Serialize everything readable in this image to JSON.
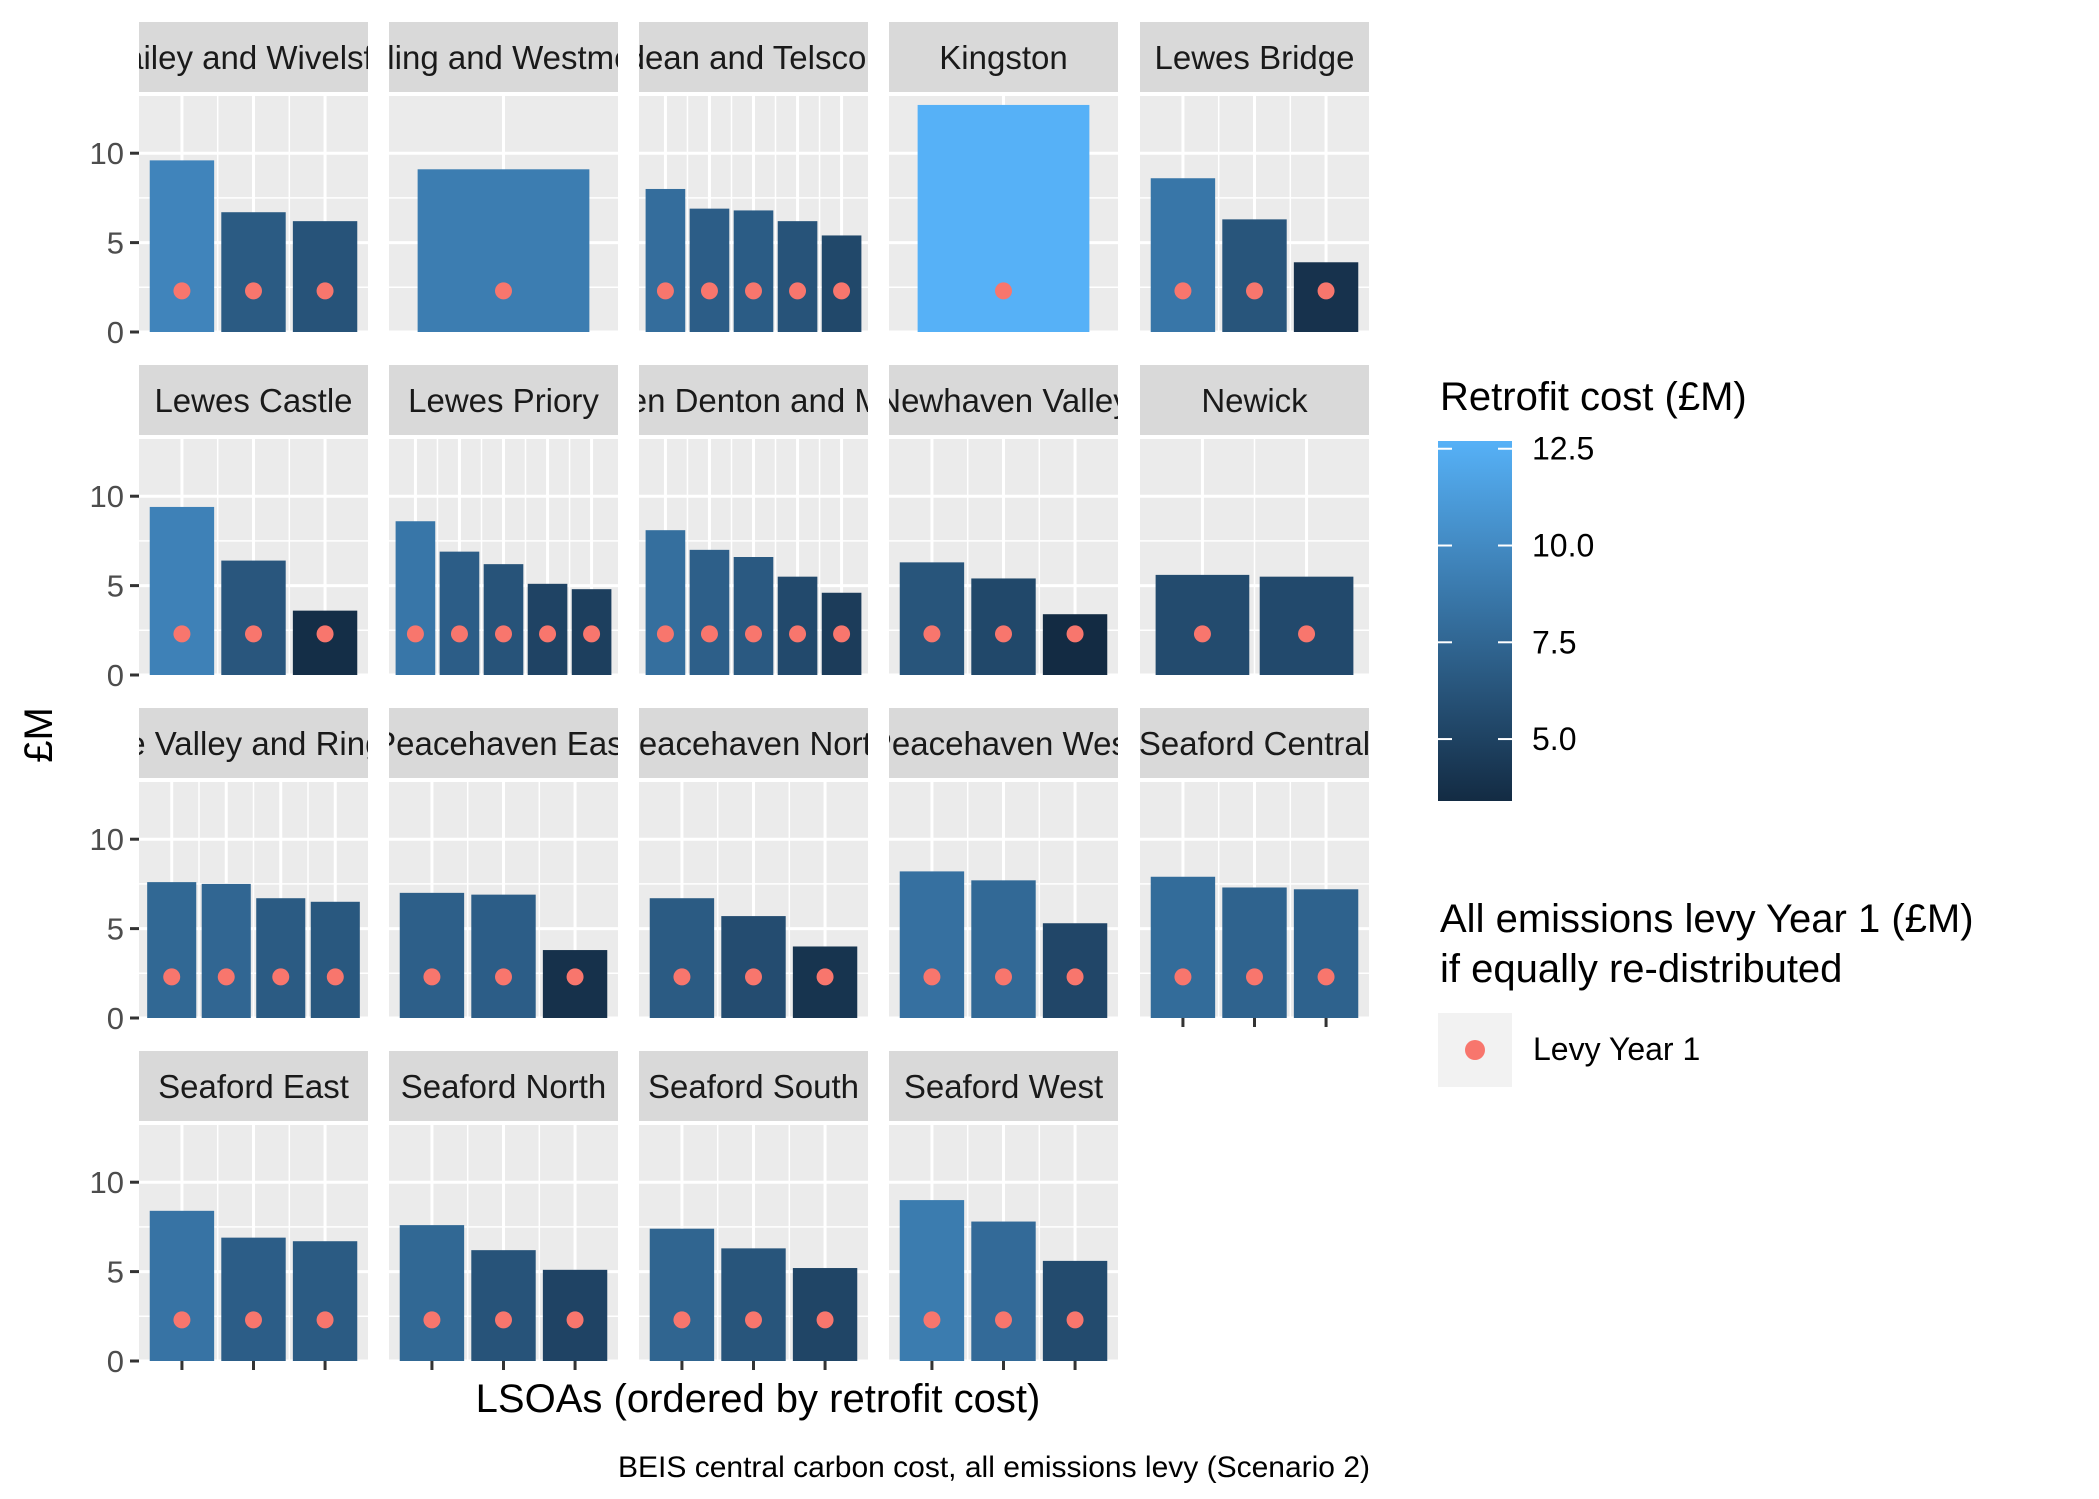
{
  "chart_data": {
    "type": "bar",
    "facet_layout": "wrap",
    "ylabel": "£M",
    "xlabel": "LSOAs (ordered by retrofit cost)",
    "caption": "BEIS central carbon cost, all emissions levy (Scenario 2)",
    "y_ticks": [
      "0",
      "5",
      "10"
    ],
    "y_tick_values": [
      0,
      5,
      10
    ],
    "ylim": [
      0,
      13.2
    ],
    "grid": true,
    "fill_scale": {
      "title": "Retrofit cost (£M)",
      "min": 3.4,
      "max": 12.7,
      "low_color": "#132B43",
      "high_color": "#56B1F7",
      "ticks": [
        "5.0",
        "7.5",
        "10.0",
        "12.5"
      ],
      "tick_values": [
        5.0,
        7.5,
        10.0,
        12.5
      ]
    },
    "point_legend": {
      "title_line1": "All emissions levy Year 1 (£M)",
      "title_line2": "if equally re-distributed",
      "label": "Levy Year 1",
      "color": "#F8766D"
    },
    "levy_value": 2.3,
    "legend_position": "right",
    "facets": [
      {
        "strip": "Chailey and Wivelsfield",
        "values": [
          9.6,
          6.7,
          6.2
        ]
      },
      {
        "strip": "Ditchling and Westmeston",
        "values": [
          9.1
        ]
      },
      {
        "strip": "East Saltdean and Telscombe Cliffs",
        "values": [
          8.0,
          6.9,
          6.8,
          6.2,
          5.4
        ]
      },
      {
        "strip": "Kingston",
        "values": [
          12.7
        ]
      },
      {
        "strip": "Lewes Bridge",
        "values": [
          8.6,
          6.3,
          3.9
        ]
      },
      {
        "strip": "Lewes Castle",
        "values": [
          9.4,
          6.4,
          3.6
        ]
      },
      {
        "strip": "Lewes Priory",
        "values": [
          8.6,
          6.9,
          6.2,
          5.1,
          4.8
        ]
      },
      {
        "strip": "Newhaven Denton and Meeching",
        "values": [
          8.1,
          7.0,
          6.6,
          5.5,
          4.6
        ]
      },
      {
        "strip": "Newhaven Valley",
        "values": [
          6.3,
          5.4,
          3.4
        ]
      },
      {
        "strip": "Newick",
        "values": [
          5.6,
          5.5
        ]
      },
      {
        "strip": "Ouse Valley and Ringmer",
        "values": [
          7.6,
          7.5,
          6.7,
          6.5
        ]
      },
      {
        "strip": "Peacehaven East",
        "values": [
          7.0,
          6.9,
          3.8
        ]
      },
      {
        "strip": "Peacehaven North",
        "values": [
          6.7,
          5.7,
          4.0
        ]
      },
      {
        "strip": "Peacehaven West",
        "values": [
          8.2,
          7.7,
          5.3
        ]
      },
      {
        "strip": "Seaford Central",
        "values": [
          7.9,
          7.3,
          7.2
        ]
      },
      {
        "strip": "Seaford East",
        "values": [
          8.4,
          6.9,
          6.7
        ]
      },
      {
        "strip": "Seaford North",
        "values": [
          7.6,
          6.2,
          5.1
        ]
      },
      {
        "strip": "Seaford South",
        "values": [
          7.4,
          6.3,
          5.2
        ]
      },
      {
        "strip": "Seaford West",
        "values": [
          9.0,
          7.8,
          5.6
        ]
      }
    ]
  }
}
